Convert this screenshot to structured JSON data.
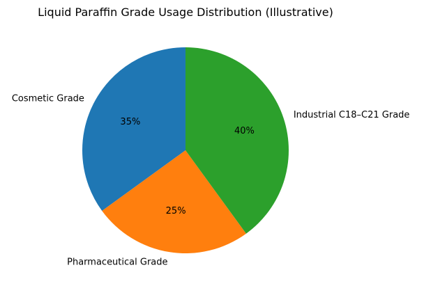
{
  "chart_data": {
    "type": "pie",
    "title": "Liquid Paraffin Grade Usage Distribution (Illustrative)",
    "labels": [
      "Cosmetic Grade",
      "Pharmaceutical Grade",
      "Industrial C18–C21 Grade"
    ],
    "values": [
      35,
      25,
      40
    ],
    "value_labels": [
      "35%",
      "25%",
      "40%"
    ],
    "colors": [
      "#1f77b4",
      "#ff7f0e",
      "#2ca02c"
    ],
    "start_angle_deg": 90,
    "direction": "counterclockwise"
  }
}
